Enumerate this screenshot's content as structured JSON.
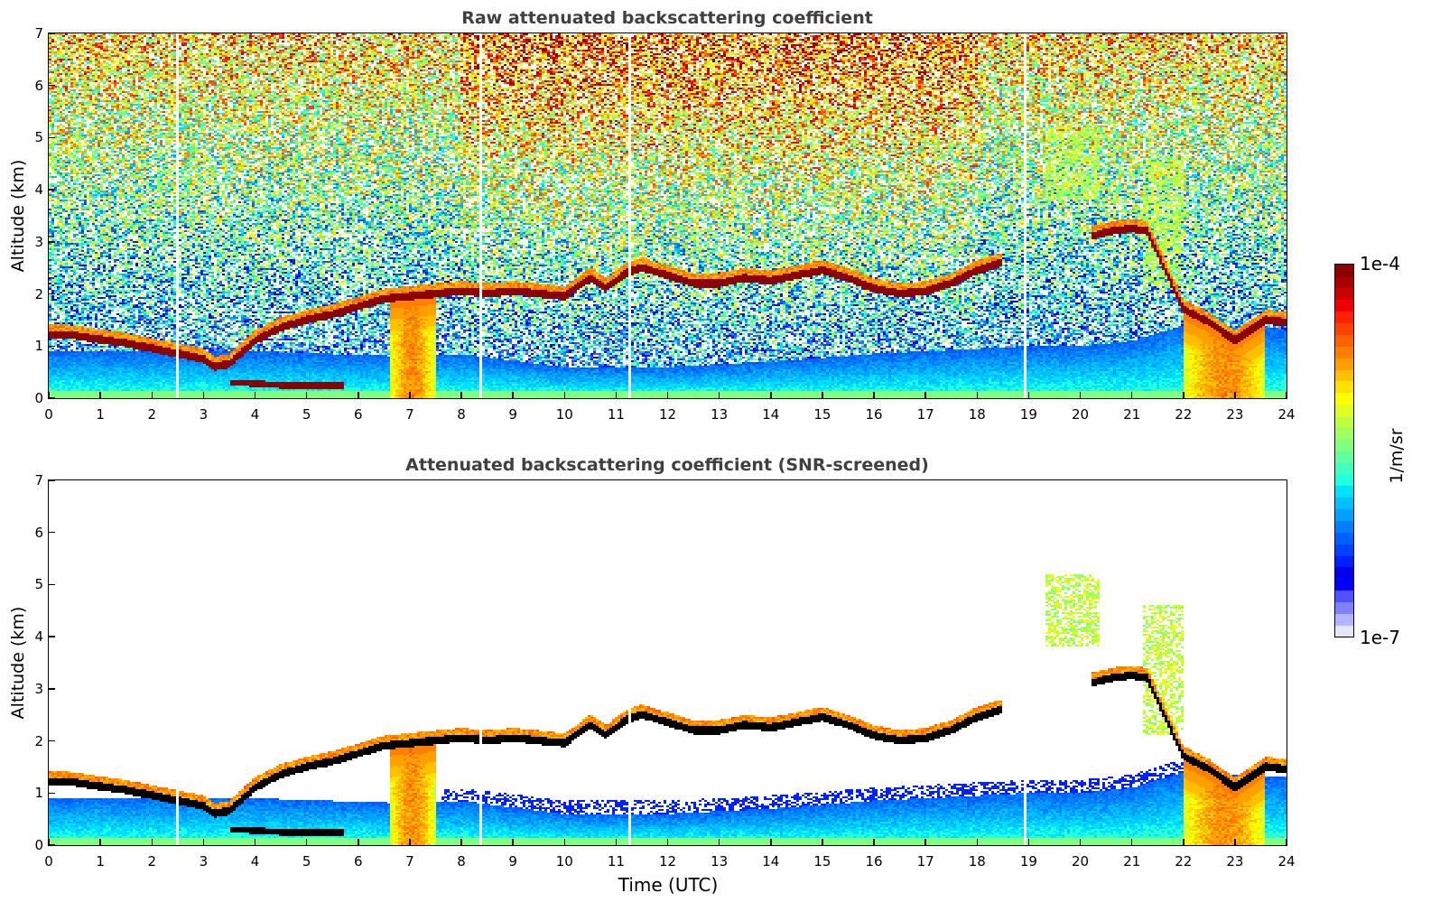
{
  "chart_data": [
    {
      "type": "heatmap",
      "title": "Raw attenuated backscattering coefficient",
      "xlabel": "",
      "ylabel": "Altitude (km)",
      "xlim": [
        0,
        24
      ],
      "ylim": [
        0,
        7
      ],
      "x_ticks": [
        "0",
        "1",
        "2",
        "3",
        "4",
        "5",
        "6",
        "7",
        "8",
        "9",
        "10",
        "11",
        "12",
        "13",
        "14",
        "15",
        "16",
        "17",
        "18",
        "19",
        "20",
        "21",
        "22",
        "23",
        "24"
      ],
      "y_ticks": [
        "0",
        "1",
        "2",
        "3",
        "4",
        "5",
        "6",
        "7"
      ],
      "screened": false,
      "colorscale": "jet-log",
      "clim": [
        "1e-7",
        "1e-4"
      ]
    },
    {
      "type": "heatmap",
      "title": "Attenuated backscattering coefficient (SNR-screened)",
      "xlabel": "Time (UTC)",
      "ylabel": "Altitude (km)",
      "xlim": [
        0,
        24
      ],
      "ylim": [
        0,
        7
      ],
      "x_ticks": [
        "0",
        "1",
        "2",
        "3",
        "4",
        "5",
        "6",
        "7",
        "8",
        "9",
        "10",
        "11",
        "12",
        "13",
        "14",
        "15",
        "16",
        "17",
        "18",
        "19",
        "20",
        "21",
        "22",
        "23",
        "24"
      ],
      "y_ticks": [
        "0",
        "1",
        "2",
        "3",
        "4",
        "5",
        "6",
        "7"
      ],
      "screened": true,
      "colorscale": "jet-log",
      "clim": [
        "1e-7",
        "1e-4"
      ]
    }
  ],
  "colorbar": {
    "max_label": "1e-4",
    "min_label": "1e-7",
    "unit": "1/m/sr",
    "colors": [
      "#e6e6fa",
      "#b4b4ff",
      "#8080ff",
      "#5050ff",
      "#0000ff",
      "#0000ee",
      "#0020ff",
      "#0040ff",
      "#0060ff",
      "#0080ff",
      "#00a0ff",
      "#00c0ff",
      "#00e0ff",
      "#20ffe0",
      "#40ffc0",
      "#60ff9f",
      "#80ff80",
      "#9fff60",
      "#c0ff40",
      "#e0ff20",
      "#ffff00",
      "#ffe000",
      "#ffc000",
      "#ffa000",
      "#ff8000",
      "#ff6000",
      "#ff4000",
      "#ff2000",
      "#ee0000",
      "#cc0000",
      "#aa0000",
      "#8b0000"
    ]
  },
  "features": {
    "cloud_layer": [
      [
        0,
        1.22
      ],
      [
        0.5,
        1.2
      ],
      [
        1,
        1.12
      ],
      [
        1.5,
        1.05
      ],
      [
        2,
        0.95
      ],
      [
        2.5,
        0.85
      ],
      [
        3,
        0.75
      ],
      [
        3.2,
        0.6
      ],
      [
        3.5,
        0.65
      ],
      [
        4,
        1.1
      ],
      [
        4.5,
        1.35
      ],
      [
        5,
        1.5
      ],
      [
        5.5,
        1.6
      ],
      [
        6,
        1.75
      ],
      [
        6.5,
        1.9
      ],
      [
        7,
        1.95
      ],
      [
        7.5,
        2.0
      ],
      [
        8,
        2.05
      ],
      [
        8.5,
        2.0
      ],
      [
        9,
        2.05
      ],
      [
        9.5,
        2.0
      ],
      [
        10,
        1.95
      ],
      [
        10.5,
        2.3
      ],
      [
        10.8,
        2.1
      ],
      [
        11.2,
        2.4
      ],
      [
        11.5,
        2.5
      ],
      [
        12,
        2.35
      ],
      [
        12.5,
        2.2
      ],
      [
        13,
        2.2
      ],
      [
        13.5,
        2.3
      ],
      [
        14,
        2.25
      ],
      [
        14.5,
        2.35
      ],
      [
        15,
        2.45
      ],
      [
        15.5,
        2.3
      ],
      [
        16,
        2.1
      ],
      [
        16.5,
        2.0
      ],
      [
        17,
        2.05
      ],
      [
        17.5,
        2.2
      ],
      [
        18,
        2.45
      ],
      [
        18.5,
        2.6
      ]
    ],
    "cloud_layer_late": [
      [
        20.2,
        3.1
      ],
      [
        20.6,
        3.2
      ],
      [
        21,
        3.25
      ],
      [
        21.3,
        3.2
      ],
      [
        22,
        1.7
      ],
      [
        22.5,
        1.45
      ],
      [
        23,
        1.1
      ],
      [
        23.3,
        1.3
      ],
      [
        23.6,
        1.5
      ],
      [
        24,
        1.45
      ]
    ],
    "boundary_layer_top": [
      [
        0,
        0.9
      ],
      [
        4,
        0.9
      ],
      [
        7,
        0.8
      ],
      [
        8,
        0.85
      ],
      [
        10,
        0.6
      ],
      [
        12,
        0.6
      ],
      [
        14,
        0.7
      ],
      [
        16,
        0.85
      ],
      [
        18,
        0.95
      ],
      [
        19,
        1.0
      ],
      [
        20,
        1.0
      ],
      [
        21,
        1.1
      ],
      [
        22,
        1.4
      ],
      [
        24,
        1.3
      ]
    ],
    "low_layer": [
      [
        3.5,
        0.3
      ],
      [
        4,
        0.28
      ],
      [
        4.5,
        0.25
      ],
      [
        5,
        0.24
      ],
      [
        5.7,
        0.25
      ]
    ],
    "precip_columns": [
      [
        6.6,
        7.5
      ],
      [
        22.0,
        23.6
      ]
    ],
    "upper_clouds": [
      [
        19.3,
        20.4,
        3.8,
        5.2
      ],
      [
        21.2,
        22.0,
        2.1,
        4.6
      ]
    ]
  }
}
